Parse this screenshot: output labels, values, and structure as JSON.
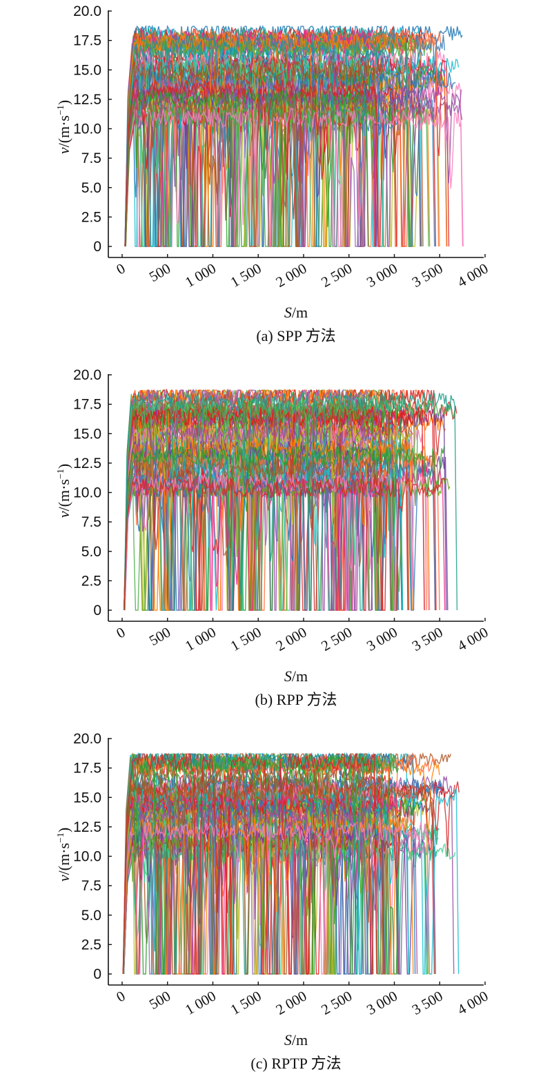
{
  "chart_data": [
    {
      "type": "line",
      "caption": "(a) SPP 方法",
      "xlabel_var": "S",
      "xlabel_unit": "/m",
      "ylabel_var": "v",
      "ylabel_unit": "/(m·s",
      "ylabel_exp": "−1",
      "ylabel_close": ")",
      "xlim": [
        0,
        4000
      ],
      "ylim": [
        0,
        20
      ],
      "x_ticks": [
        0,
        500,
        1000,
        1500,
        2000,
        2500,
        3000,
        3500,
        4000
      ],
      "x_tick_labels": [
        "0",
        "500",
        "1 000",
        "1 500",
        "2 000",
        "2 500",
        "3 000",
        "3 500",
        "4 000"
      ],
      "y_ticks": [
        0,
        2.5,
        5,
        7.5,
        10,
        12.5,
        15,
        17.5,
        20
      ],
      "y_tick_labels": [
        "0",
        "2.5",
        "5.0",
        "7.5",
        "10.0",
        "12.5",
        "15.0",
        "17.5",
        "20.0"
      ],
      "grid": false,
      "legend": "none",
      "profile": {
        "trajectory_count": 70,
        "start_distance": 30,
        "max_distance": 3780,
        "cruise_speed_range": [
          10.5,
          18.4
        ],
        "stop_count_range": [
          1,
          4
        ],
        "low_speed_band": [
          0,
          5
        ]
      }
    },
    {
      "type": "line",
      "caption": "(b) RPP 方法",
      "xlabel_var": "S",
      "xlabel_unit": "/m",
      "ylabel_var": "v",
      "ylabel_unit": "/(m·s",
      "ylabel_exp": "−1",
      "ylabel_close": ")",
      "xlim": [
        0,
        4000
      ],
      "ylim": [
        0,
        20
      ],
      "x_ticks": [
        0,
        500,
        1000,
        1500,
        2000,
        2500,
        3000,
        3500,
        4000
      ],
      "x_tick_labels": [
        "0",
        "500",
        "1 000",
        "1 500",
        "2 000",
        "2 500",
        "3 000",
        "3 500",
        "4 000"
      ],
      "y_ticks": [
        0,
        2.5,
        5,
        7.5,
        10,
        12.5,
        15,
        17.5,
        20
      ],
      "y_tick_labels": [
        "0",
        "2.5",
        "5.0",
        "7.5",
        "10.0",
        "12.5",
        "15.0",
        "17.5",
        "20.0"
      ],
      "grid": false,
      "legend": "none",
      "profile": {
        "trajectory_count": 70,
        "start_distance": 20,
        "max_distance": 3680,
        "cruise_speed_range": [
          10.0,
          18.5
        ],
        "stop_count_range": [
          1,
          3
        ],
        "low_speed_band": [
          0,
          5
        ]
      }
    },
    {
      "type": "line",
      "caption": "(c) RPTP 方法",
      "xlabel_var": "S",
      "xlabel_unit": "/m",
      "ylabel_var": "v",
      "ylabel_unit": "/(m·s",
      "ylabel_exp": "−1",
      "ylabel_close": ")",
      "xlim": [
        0,
        4000
      ],
      "ylim": [
        0,
        20
      ],
      "x_ticks": [
        0,
        500,
        1000,
        1500,
        2000,
        2500,
        3000,
        3500,
        4000
      ],
      "x_tick_labels": [
        "0",
        "500",
        "1 000",
        "1 500",
        "2 000",
        "2 500",
        "3 000",
        "3 500",
        "4 000"
      ],
      "y_ticks": [
        0,
        2.5,
        5,
        7.5,
        10,
        12.5,
        15,
        17.5,
        20
      ],
      "y_tick_labels": [
        "0",
        "2.5",
        "5.0",
        "7.5",
        "10.0",
        "12.5",
        "15.0",
        "17.5",
        "20.0"
      ],
      "grid": false,
      "legend": "none",
      "profile": {
        "trajectory_count": 70,
        "start_distance": 10,
        "max_distance": 3700,
        "cruise_speed_range": [
          10.0,
          18.7
        ],
        "stop_count_range": [
          1,
          3
        ],
        "low_speed_band": [
          0,
          5
        ]
      }
    }
  ],
  "colors": {
    "series_palette": [
      "#e41a1c",
      "#377eb8",
      "#4daf4a",
      "#984ea3",
      "#ff7f00",
      "#1f9e89",
      "#a65628",
      "#f781bf",
      "#2ca02c",
      "#d62728",
      "#1f77b4",
      "#9467bd",
      "#17becf",
      "#bcbd22",
      "#ff6f3c",
      "#3ecf8e",
      "#6a3d9a",
      "#b15928",
      "#e7298a",
      "#66a61e"
    ],
    "axis": "#111111"
  }
}
